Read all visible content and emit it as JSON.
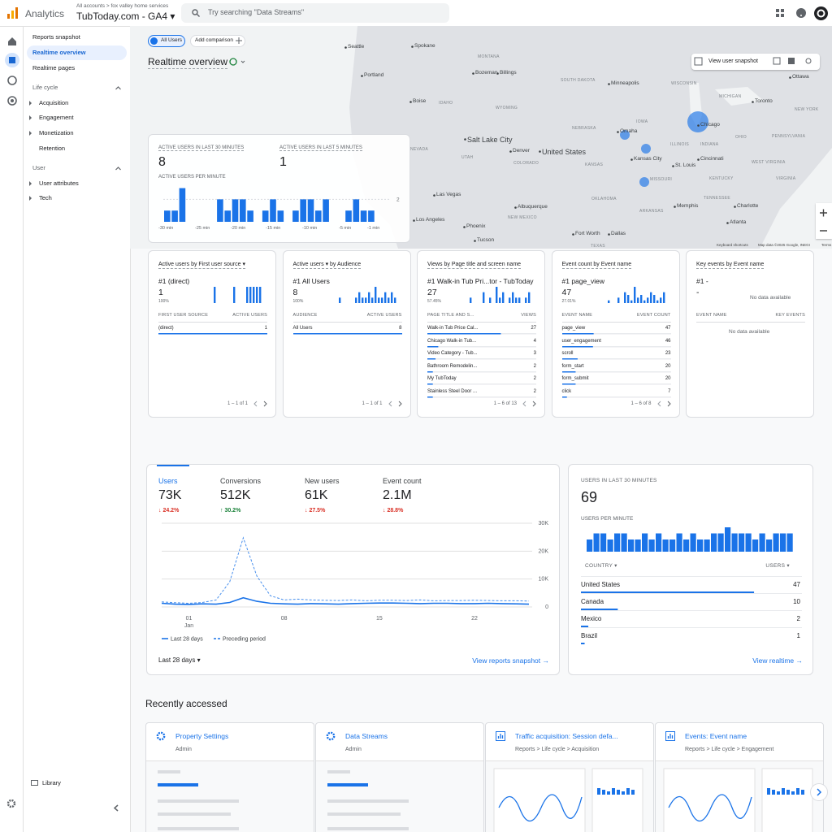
{
  "header": {
    "product": "Analytics",
    "breadcrumb": "All accounts > fox valley home services",
    "property": "TubToday.com - GA4 ▾",
    "search_placeholder": "Try searching \"Data Streams\""
  },
  "nav": {
    "items": [
      "Reports snapshot",
      "Realtime overview",
      "Realtime pages",
      "Life cycle",
      "Acquisition",
      "Engagement",
      "Monetization",
      "Retention",
      "User",
      "User attributes",
      "Tech"
    ],
    "footer": "Library"
  },
  "toolbar": {
    "chips": [
      "All Users",
      "Add comparison"
    ],
    "title": "Realtime overview"
  },
  "map": {
    "labels": [
      "Seattle",
      "Spokane",
      "Portland",
      "MONTANA",
      "Bozeman",
      "Billings",
      "Boise",
      "IDAHO",
      "WYOMING",
      "Minneapolis",
      "SOUTH DAKOTA",
      "NEBRASKA",
      "Omaha",
      "IOWA",
      "Chicago",
      "Salt Lake City",
      "NEVADA",
      "UTAH",
      "Denver",
      "United States",
      "COLORADO",
      "KANSAS",
      "Kansas City",
      "St. Louis",
      "Cincinnati",
      "Las Vegas",
      "Albuquerque",
      "OKLAHOMA",
      "ARKANSAS",
      "Memphis",
      "Phoenix",
      "NEW MEXICO",
      "Tucson",
      "Fort Worth",
      "Dallas",
      "TEXAS",
      "Atlanta",
      "Charlotte",
      "Toronto",
      "MICHIGAN",
      "NEW YORK",
      "PENNSYLVANIA",
      "ILLINOIS",
      "INDIANA",
      "OHIO",
      "KENTUCKY",
      "TENNESSEE",
      "VIRGINIA",
      "WISCONSIN",
      "MISSOURI",
      "Ottawa",
      "WEST VIRGINIA",
      "Los Angeles"
    ],
    "snapshot": "View user snapshot",
    "attribution": [
      "Keyboard shortcuts",
      "Map data ©2025 Google, INEGI",
      "Terms"
    ]
  },
  "realtime_card": {
    "metrics": [
      {
        "label": "ACTIVE USERS IN LAST 30 MINUTES",
        "value": 8
      },
      {
        "label": "ACTIVE USERS IN LAST 5 MINUTES",
        "value": 1
      }
    ],
    "chart_label": "ACTIVE USERS PER MINUTE",
    "per_minute": [
      1,
      1,
      3,
      0,
      0,
      0,
      0,
      2,
      1,
      2,
      2,
      1,
      0,
      1,
      2,
      1,
      0,
      1,
      2,
      2,
      1,
      2,
      0,
      0,
      1,
      2,
      1,
      1,
      0,
      0
    ],
    "ylim": [
      0,
      3.4
    ],
    "yticks": [
      2
    ],
    "x_labels": [
      "-30 min",
      "-25 min",
      "-20 min",
      "-15 min",
      "-10 min",
      "-5 min",
      "-1 min"
    ]
  },
  "cards": [
    {
      "title": "Active users by First user source ▾",
      "top_label": "#1 (direct)",
      "top_value": 1,
      "top_share": "100%",
      "spark": [
        0,
        0,
        0,
        0,
        0,
        1,
        0,
        0,
        0,
        0,
        0,
        1,
        0,
        0,
        0,
        1,
        1,
        1,
        1,
        1
      ],
      "columns": [
        "FIRST USER SOURCE",
        "ACTIVE USERS"
      ],
      "rows": [
        [
          "(direct)",
          1
        ]
      ],
      "pager": "1 – 1 of 1"
    },
    {
      "title": "Active users ▾ by Audience",
      "top_label": "#1 All Users",
      "top_value": 8,
      "top_share": "100%",
      "spark": [
        0,
        0,
        1,
        0,
        0,
        0,
        0,
        1,
        2,
        1,
        1,
        2,
        1,
        3,
        1,
        1,
        2,
        1,
        2,
        1
      ],
      "columns": [
        "AUDIENCE",
        "ACTIVE USERS"
      ],
      "rows": [
        [
          "All Users",
          8
        ]
      ],
      "pager": "1 – 1 of 1"
    },
    {
      "title": "Views by Page title and screen name",
      "top_label": "#1 Walk-in Tub Pri...tor - TubToday",
      "top_value": 27,
      "top_share": "57.45%",
      "spark": [
        0,
        1,
        0,
        0,
        0,
        2,
        0,
        1,
        0,
        3,
        1,
        2,
        0,
        1,
        2,
        1,
        1,
        0,
        1,
        2
      ],
      "columns": [
        "PAGE TITLE AND S...",
        "VIEWS"
      ],
      "rows": [
        [
          "Walk-in Tub Price Cal...",
          27
        ],
        [
          "Chicago Walk-in Tub...",
          4
        ],
        [
          "Video Category - Tub...",
          3
        ],
        [
          "Bathroom Remodelin...",
          2
        ],
        [
          "My TubToday",
          2
        ],
        [
          "Stainless Steel Door ...",
          2
        ]
      ],
      "pager": "1 – 6 of 13"
    },
    {
      "title": "Event count by Event name",
      "top_label": "#1 page_view",
      "top_value": 47,
      "top_share": "27.01%",
      "spark": [
        0,
        0,
        1,
        0,
        0,
        2,
        0,
        4,
        3,
        1,
        6,
        2,
        3,
        1,
        2,
        4,
        3,
        1,
        2,
        4
      ],
      "columns": [
        "EVENT NAME",
        "EVENT COUNT"
      ],
      "rows": [
        [
          "page_view",
          47
        ],
        [
          "user_engagement",
          46
        ],
        [
          "scroll",
          23
        ],
        [
          "form_start",
          20
        ],
        [
          "form_submit",
          20
        ],
        [
          "click",
          7
        ]
      ],
      "pager": "1 – 6 of 8"
    },
    {
      "title": "Key events by Event name",
      "top_label": "#1 -",
      "top_value": "-",
      "empty": "No data available",
      "columns": [
        "EVENT NAME",
        "KEY EVENTS"
      ],
      "rows": [],
      "table_empty": "No data available"
    }
  ],
  "overview": {
    "tabs": [
      {
        "name": "Users",
        "value": "73K",
        "change": "↓ 24.2%",
        "dir": "down"
      },
      {
        "name": "Conversions",
        "value": "512K",
        "change": "↑ 30.2%",
        "dir": "up"
      },
      {
        "name": "New users",
        "value": "61K",
        "change": "↓ 27.5%",
        "dir": "down"
      },
      {
        "name": "Event count",
        "value": "2.1M",
        "change": "↓ 28.8%",
        "dir": "down"
      }
    ],
    "chart": {
      "type": "line",
      "categories": [
        null,
        null,
        "01",
        null,
        null,
        null,
        null,
        null,
        null,
        "08",
        null,
        null,
        null,
        null,
        null,
        null,
        "15",
        null,
        null,
        null,
        null,
        null,
        null,
        "22",
        null,
        null,
        null,
        null
      ],
      "x_sublabel": "Jan",
      "series": [
        {
          "name": "Last 28 days",
          "color": "#1a73e8",
          "values": [
            1300,
            1000,
            900,
            1100,
            1000,
            1600,
            3300,
            2000,
            1300,
            1100,
            1000,
            1200,
            1100,
            1000,
            1200,
            1300,
            1400,
            1400,
            1300,
            1200,
            1300,
            1300,
            1200,
            1200,
            1300,
            1200,
            1100,
            1000
          ]
        },
        {
          "name": "Preceding period",
          "color": "#1a73e8",
          "dashed": true,
          "values": [
            1800,
            1500,
            1300,
            1600,
            2500,
            9000,
            24800,
            11000,
            4000,
            2500,
            2800,
            2500,
            2400,
            2300,
            2500,
            2200,
            2400,
            2400,
            2300,
            2500,
            2200,
            2300,
            2300,
            2400,
            2300,
            2200,
            2200,
            2100
          ]
        }
      ],
      "ylim": [
        0,
        30000
      ],
      "yticks": [
        0,
        {
          "value": 10000,
          "label": "10K"
        },
        {
          "value": 20000,
          "label": "20K"
        },
        {
          "value": 30000,
          "label": "30K"
        }
      ]
    },
    "range": "Last 28 days ▾",
    "link": "View reports snapshot →"
  },
  "realtime_users": {
    "title": "USERS IN LAST 30 MINUTES",
    "value": 69,
    "chart_label": "USERS PER MINUTE",
    "per_minute": [
      2,
      3,
      3,
      2,
      3,
      3,
      2,
      2,
      3,
      2,
      3,
      2,
      2,
      3,
      2,
      3,
      2,
      2,
      3,
      3,
      4,
      3,
      3,
      3,
      2,
      3,
      2,
      3,
      3,
      3
    ],
    "ylim": [
      0,
      4
    ],
    "columns": [
      "COUNTRY ▾",
      "USERS ▾"
    ],
    "rows": [
      [
        "United States",
        47
      ],
      [
        "Canada",
        10
      ],
      [
        "Mexico",
        2
      ],
      [
        "Brazil",
        1
      ]
    ],
    "link": "View realtime →"
  },
  "recent": {
    "title": "Recently accessed",
    "items": [
      {
        "title": "Property Settings",
        "subtitle": "Admin"
      },
      {
        "title": "Data Streams",
        "subtitle": "Admin"
      },
      {
        "title": "Traffic acquisition: Session defa...",
        "subtitle": "Reports > Life cycle > Acquisition"
      },
      {
        "title": "Events: Event name",
        "subtitle": "Reports > Life cycle > Engagement"
      }
    ]
  }
}
